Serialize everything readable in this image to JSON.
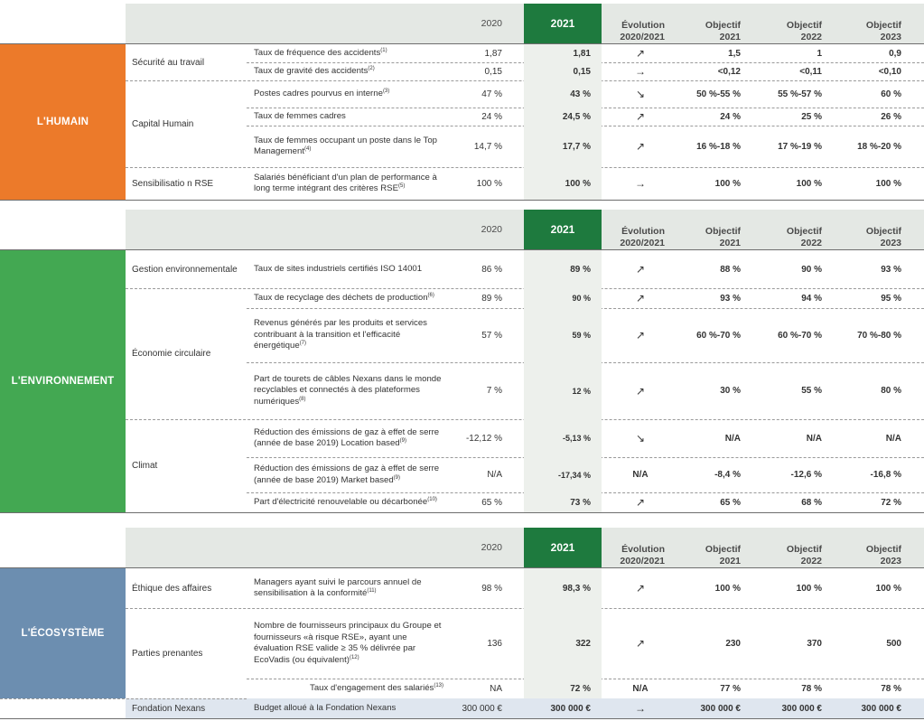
{
  "colors": {
    "humain": "#ec7a2a",
    "environnement": "#43a852",
    "ecosysteme": "#6c8eb0",
    "year2021": "#1e7a3e"
  },
  "headers": {
    "y2020": "2020",
    "y2021": "2021",
    "evo_1": "Évolution",
    "evo_2": "2020/2021",
    "obj21_1": "Objectif",
    "obj21_2": "2021",
    "obj22_1": "Objectif",
    "obj22_2": "2022",
    "obj23_1": "Objectif",
    "obj23_2": "2023"
  },
  "humain": {
    "pillar": "L'HUMAIN",
    "cats": {
      "securite": "Sécurité au travail",
      "capital": "Capital Humain",
      "sensib": "Sensibilisatio n RSE"
    },
    "rows": [
      {
        "ind": "Taux de fréquence des accidents",
        "sup": "(1)",
        "v2020": "1,87",
        "v2021": "1,81",
        "evo": "↗",
        "o21": "1,5",
        "o22": "1",
        "o23": "0,9"
      },
      {
        "ind": "Taux de gravité des accidents",
        "sup": "(2)",
        "v2020": "0,15",
        "v2021": "0,15",
        "evo": "→",
        "o21": "<0,12",
        "o22": "<0,11",
        "o23": "<0,10"
      },
      {
        "ind": "Postes cadres pourvus en interne",
        "sup": "(3)",
        "v2020": "47 %",
        "v2021": "43 %",
        "evo": "↘",
        "o21": "50 %-55 %",
        "o22": "55 %-57 %",
        "o23": "60 %"
      },
      {
        "ind": "Taux de femmes cadres",
        "sup": "",
        "v2020": "24 %",
        "v2021": "24,5 %",
        "evo": "↗",
        "o21": "24 %",
        "o22": "25 %",
        "o23": "26 %"
      },
      {
        "ind": "Taux de femmes occupant un poste dans le Top Management",
        "sup": "(4)",
        "v2020": "14,7 %",
        "v2021": "17,7 %",
        "evo": "↗",
        "o21": "16 %-18 %",
        "o22": "17 %-19 %",
        "o23": "18 %-20 %"
      },
      {
        "ind": "Salariés bénéficiant d'un plan de performance à long terme intégrant des critères RSE",
        "sup": "(5)",
        "v2020": "100 %",
        "v2021": "100 %",
        "evo": "→",
        "o21": "100 %",
        "o22": "100 %",
        "o23": "100 %"
      }
    ]
  },
  "environnement": {
    "pillar": "L'ENVIRONNEMENT",
    "cats": {
      "gestion": "Gestion environnementale",
      "economie": "Économie circulaire",
      "climat": "Climat"
    },
    "rows": [
      {
        "ind": "Taux de sites industriels certifiés ISO 14001",
        "sup": "",
        "v2020": "86 %",
        "v2021": "89 %",
        "evo": "↗",
        "o21": "88 %",
        "o22": "90 %",
        "o23": "93 %"
      },
      {
        "ind": "Taux de recyclage des déchets de production",
        "sup": "(6)",
        "v2020": "89 %",
        "v2021": "90 %",
        "evo": "↗",
        "o21": "93 %",
        "o22": "94 %",
        "o23": "95 %"
      },
      {
        "ind": "Revenus générés par les produits et services contribuant à la transition et l'efficacité énergétique",
        "sup": "(7)",
        "v2020": "57 %",
        "v2021": "59 %",
        "evo": "↗",
        "o21": "60 %-70 %",
        "o22": "60 %-70 %",
        "o23": "70 %-80 %"
      },
      {
        "ind": "Part de tourets de câbles Nexans dans le monde recyclables et connectés à des plateformes numériques",
        "sup": "(8)",
        "v2020": "7 %",
        "v2021": "12 %",
        "evo": "↗",
        "o21": "30 %",
        "o22": "55 %",
        "o23": "80 %"
      },
      {
        "ind": "Réduction des émissions de gaz à effet de serre (année de base 2019) Location based",
        "sup": "(9)",
        "v2020": "-12,12 %",
        "v2021": "-5,13 %",
        "evo": "↘",
        "o21": "N/A",
        "o22": "N/A",
        "o23": "N/A"
      },
      {
        "ind": "Réduction des émissions de gaz à effet de serre (année de base 2019) Market based",
        "sup": "(9)",
        "v2020": "N/A",
        "v2021": "-17,34 %",
        "evo": "N/A",
        "o21": "-8,4 %",
        "o22": "-12,6 %",
        "o23": "-16,8 %"
      },
      {
        "ind": "Part d'électricité renouvelable ou décarbonée",
        "sup": "(10)",
        "v2020": "65 %",
        "v2021": "73 %",
        "evo": "↗",
        "o21": "65 %",
        "o22": "68 %",
        "o23": "72 %"
      }
    ]
  },
  "ecosysteme": {
    "pillar": "L'ÉCOSYSTÈME",
    "cats": {
      "ethique": "Éthique des affaires",
      "parties": "Parties prenantes",
      "fondation": "Fondation Nexans"
    },
    "rows": [
      {
        "ind": "Managers ayant suivi le parcours annuel de sensibilisation à la conformité",
        "sup": "(11)",
        "v2020": "98 %",
        "v2021": "98,3 %",
        "evo": "↗",
        "o21": "100 %",
        "o22": "100 %",
        "o23": "100 %"
      },
      {
        "ind": "Nombre de fournisseurs principaux du Groupe et fournisseurs «à risque RSE», ayant une évaluation RSE valide ≥ 35 % délivrée par EcoVadis (ou équivalent)",
        "sup": "(12)",
        "v2020": "136",
        "v2021": "322",
        "evo": "↗",
        "o21": "230",
        "o22": "370",
        "o23": "500"
      },
      {
        "ind": "Taux d'engagement des salariés",
        "sup": "(13)",
        "v2020": "NA",
        "v2021": "72 %",
        "evo": "N/A",
        "o21": "77 %",
        "o22": "78 %",
        "o23": "78 %"
      },
      {
        "ind": "Budget alloué à la Fondation Nexans",
        "sup": "",
        "v2020": "300 000 €",
        "v2021": "300 000 €",
        "evo": "→",
        "o21": "300 000 €",
        "o22": "300 000 €",
        "o23": "300 000 €"
      }
    ]
  }
}
